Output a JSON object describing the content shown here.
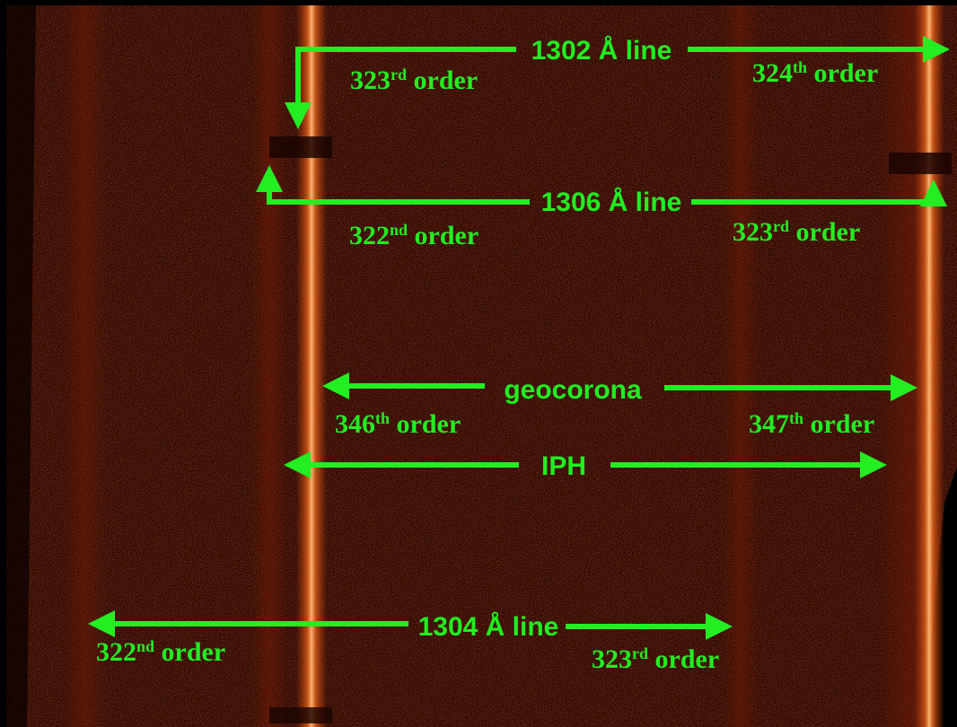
{
  "colors": {
    "annotation": "#22ee22",
    "background_dark": "#1a0502",
    "background_mid": "#3a0d05",
    "band_glow": "#c0400a",
    "band_core": "#ffb070",
    "outer_margin": "#000000"
  },
  "annotations": {
    "line_1302": {
      "title": "1302 Å line",
      "left_order_num": "323",
      "left_order_sup": "rd",
      "left_order_word": " order",
      "right_order_num": "324",
      "right_order_sup": "th",
      "right_order_word": " order"
    },
    "line_1306": {
      "title": "1306 Å line",
      "left_order_num": "322",
      "left_order_sup": "nd",
      "left_order_word": " order",
      "right_order_num": "323",
      "right_order_sup": "rd",
      "right_order_word": " order"
    },
    "geocorona": {
      "title": "geocorona",
      "left_order_num": "346",
      "left_order_sup": "th",
      "left_order_word": " order",
      "right_order_num": "347",
      "right_order_sup": "th",
      "right_order_word": " order"
    },
    "iph": {
      "title": "IPH"
    },
    "line_1304": {
      "title": "1304 Å line",
      "left_order_num": "322",
      "left_order_sup": "nd",
      "left_order_word": " order",
      "right_order_num": "323",
      "right_order_sup": "rd",
      "right_order_word": " order"
    }
  }
}
